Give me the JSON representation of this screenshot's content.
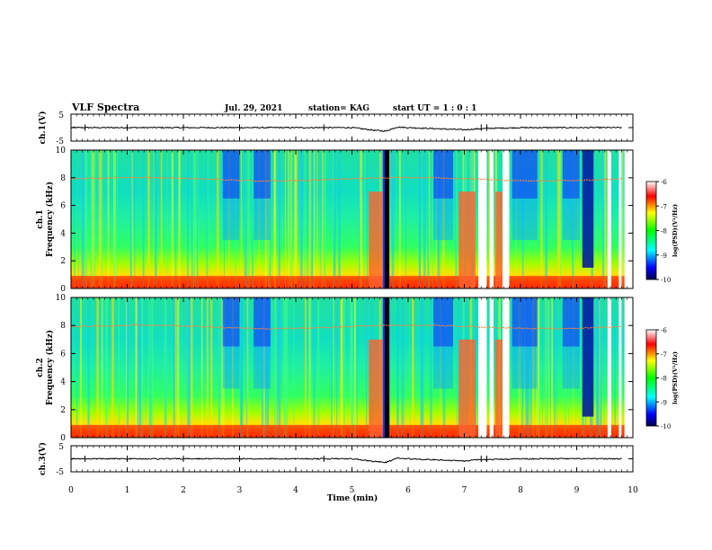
{
  "header": {
    "title": "VLF Spectra",
    "date": "Jul. 29, 2021",
    "station": "station= KAG",
    "start": "start UT = 1 : 0 : 1"
  },
  "chart_data": [
    {
      "type": "line",
      "name": "ch1-waveform",
      "ylabel": "ch.1(V)",
      "yticks": [
        "5",
        "-5"
      ],
      "ylim": [
        -5,
        5
      ],
      "xlim": [
        0,
        10
      ],
      "x": [
        0,
        1,
        2,
        3,
        4,
        5,
        5.4,
        5.6,
        5.8,
        6,
        7,
        7.2,
        7.4,
        8,
        9,
        9.8
      ],
      "y": [
        0,
        0,
        0,
        0,
        0,
        0,
        -1.0,
        -1.3,
        0.2,
        0,
        -0.8,
        -0.5,
        -0.3,
        0,
        0,
        0
      ]
    },
    {
      "type": "heatmap",
      "name": "ch1-spectrogram",
      "ylabel_channel": "ch.1",
      "ylabel": "Frequency (kHz)",
      "yticks": [
        "0",
        "2",
        "4",
        "6",
        "8",
        "10"
      ],
      "ylim": [
        0,
        10
      ],
      "xlim": [
        0,
        10
      ],
      "colorbar": {
        "label": "log(PSD)(V²/Hz)",
        "ticks": [
          "-6",
          "-7",
          "-8",
          "-9",
          "-10"
        ],
        "range": [
          -10,
          -6
        ]
      }
    },
    {
      "type": "heatmap",
      "name": "ch2-spectrogram",
      "ylabel_channel": "ch.2",
      "ylabel": "Frequency (kHz)",
      "yticks": [
        "0",
        "2",
        "4",
        "6",
        "8",
        "10"
      ],
      "ylim": [
        0,
        10
      ],
      "xlim": [
        0,
        10
      ],
      "colorbar": {
        "label": "log(PSD)(V²/Hz)",
        "ticks": [
          "-6",
          "-7",
          "-8",
          "-9",
          "-10"
        ],
        "range": [
          -10,
          -6
        ]
      }
    },
    {
      "type": "line",
      "name": "ch3-waveform",
      "ylabel": "ch.3(V)",
      "yticks": [
        "5",
        "-5"
      ],
      "ylim": [
        -5,
        5
      ],
      "xlim": [
        0,
        10
      ],
      "x": [
        0,
        1,
        2,
        3,
        4,
        5,
        5.4,
        5.6,
        5.8,
        6,
        7,
        7.2,
        7.4,
        8,
        9,
        9.8
      ],
      "y": [
        0,
        0,
        0,
        0,
        0,
        0,
        -1.0,
        -1.4,
        0.2,
        0,
        -0.8,
        -0.5,
        -0.3,
        0,
        0,
        0
      ]
    }
  ],
  "xaxis": {
    "label": "Time (min)",
    "ticks": [
      "0",
      "1",
      "2",
      "3",
      "4",
      "5",
      "6",
      "7",
      "8",
      "9",
      "10"
    ]
  }
}
